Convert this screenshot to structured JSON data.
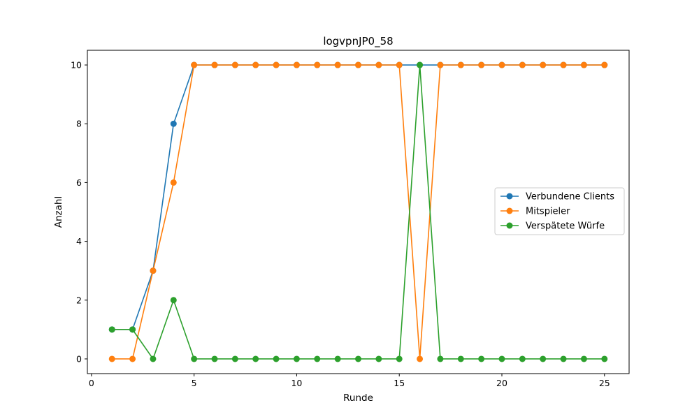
{
  "chart_data": {
    "type": "line",
    "title": "logvpnJP0_58",
    "xlabel": "Runde",
    "ylabel": "Anzahl",
    "xlim": [
      -0.2,
      26.2
    ],
    "ylim": [
      -0.5,
      10.5
    ],
    "xticks": [
      0,
      5,
      10,
      15,
      20,
      25
    ],
    "yticks": [
      0,
      2,
      4,
      6,
      8,
      10
    ],
    "grid": false,
    "legend_position": "center-right",
    "x": [
      1,
      2,
      3,
      4,
      5,
      6,
      7,
      8,
      9,
      10,
      11,
      12,
      13,
      14,
      15,
      16,
      17,
      18,
      19,
      20,
      21,
      22,
      23,
      24,
      25
    ],
    "series": [
      {
        "name": "Verbundene Clients",
        "color": "#1f77b4",
        "values": [
          1,
          1,
          3,
          8,
          10,
          10,
          10,
          10,
          10,
          10,
          10,
          10,
          10,
          10,
          10,
          10,
          10,
          10,
          10,
          10,
          10,
          10,
          10,
          10,
          10
        ]
      },
      {
        "name": "Mitspieler",
        "color": "#ff7f0e",
        "values": [
          0,
          0,
          3,
          6,
          10,
          10,
          10,
          10,
          10,
          10,
          10,
          10,
          10,
          10,
          10,
          0,
          10,
          10,
          10,
          10,
          10,
          10,
          10,
          10,
          10
        ]
      },
      {
        "name": "Verspätete Würfe",
        "color": "#2ca02c",
        "values": [
          1,
          1,
          0,
          2,
          0,
          0,
          0,
          0,
          0,
          0,
          0,
          0,
          0,
          0,
          0,
          10,
          0,
          0,
          0,
          0,
          0,
          0,
          0,
          0,
          0
        ]
      }
    ]
  }
}
